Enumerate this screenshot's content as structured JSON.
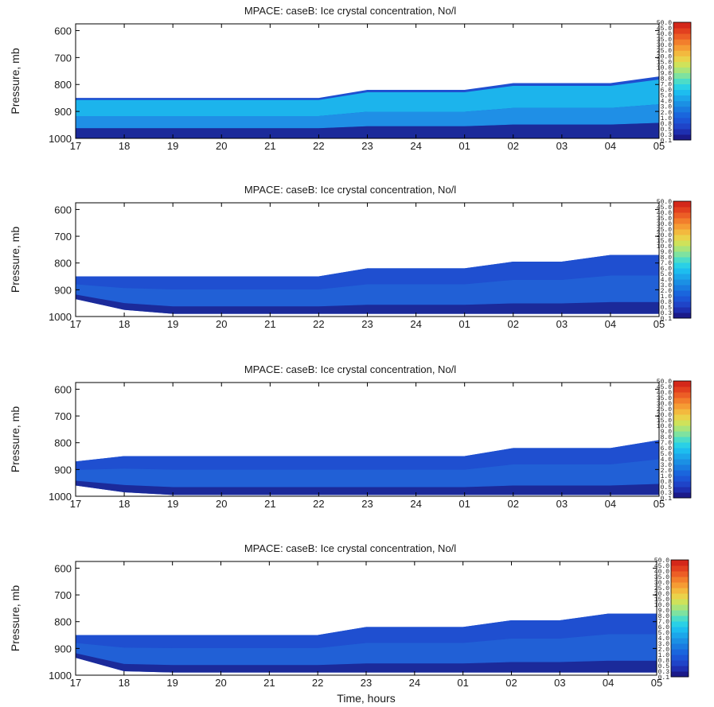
{
  "chart_data": [
    {
      "type": "heatmap",
      "title": "MPACE: caseB: Ice crystal concentration, No/l",
      "xlabel": "",
      "ylabel": "Pressure, mb",
      "x_ticks": [
        "17",
        "18",
        "19",
        "20",
        "21",
        "22",
        "23",
        "24",
        "01",
        "02",
        "03",
        "04",
        "05"
      ],
      "y_ticks": [
        600,
        700,
        800,
        900,
        1000
      ],
      "ylim": [
        1000,
        575
      ],
      "colorbar_levels": [
        "0.1",
        "0.3",
        "0.5",
        "0.8",
        "1.0",
        "2.0",
        "3.0",
        "4.0",
        "5.0",
        "6.0",
        "7.0",
        "8.0",
        "9.0",
        "10.0",
        "15.0",
        "20.0",
        "25.0",
        "30.0",
        "35.0",
        "40.0",
        "45.0",
        "50.0"
      ],
      "cloud_top_mb": [
        850,
        850,
        850,
        850,
        850,
        850,
        820,
        820,
        820,
        795,
        795,
        795,
        770
      ],
      "cloud_base_mb": [
        1000,
        1000,
        1000,
        1000,
        1000,
        1000,
        1000,
        1000,
        1000,
        1000,
        1000,
        1000,
        1000
      ]
    },
    {
      "type": "heatmap",
      "title": "MPACE: caseB: Ice crystal concentration, No/l",
      "xlabel": "",
      "ylabel": "Pressure, mb",
      "x_ticks": [
        "17",
        "18",
        "19",
        "20",
        "21",
        "22",
        "23",
        "24",
        "01",
        "02",
        "03",
        "04",
        "05"
      ],
      "y_ticks": [
        600,
        700,
        800,
        900,
        1000
      ],
      "ylim": [
        1000,
        575
      ],
      "colorbar_levels": [
        "0.1",
        "0.3",
        "0.5",
        "0.8",
        "1.0",
        "2.0",
        "3.0",
        "4.0",
        "5.0",
        "6.0",
        "7.0",
        "8.0",
        "9.0",
        "10.0",
        "15.0",
        "20.0",
        "25.0",
        "30.0",
        "35.0",
        "40.0",
        "45.0",
        "50.0"
      ],
      "cloud_top_mb": [
        850,
        850,
        850,
        850,
        850,
        850,
        820,
        820,
        820,
        795,
        795,
        770,
        770
      ],
      "cloud_base_mb": [
        935,
        975,
        990,
        990,
        990,
        990,
        990,
        990,
        990,
        990,
        990,
        990,
        990
      ]
    },
    {
      "type": "heatmap",
      "title": "MPACE: caseB: Ice crystal concentration, No/l",
      "xlabel": "",
      "ylabel": "Pressure, mb",
      "x_ticks": [
        "17",
        "18",
        "19",
        "20",
        "21",
        "22",
        "23",
        "24",
        "01",
        "02",
        "03",
        "04",
        "05"
      ],
      "y_ticks": [
        600,
        700,
        800,
        900,
        1000
      ],
      "ylim": [
        1000,
        575
      ],
      "colorbar_levels": [
        "0.1",
        "0.3",
        "0.5",
        "0.8",
        "1.0",
        "2.0",
        "3.0",
        "4.0",
        "5.0",
        "6.0",
        "7.0",
        "8.0",
        "9.0",
        "10.0",
        "15.0",
        "20.0",
        "25.0",
        "30.0",
        "35.0",
        "40.0",
        "45.0",
        "50.0"
      ],
      "cloud_top_mb": [
        870,
        850,
        850,
        850,
        850,
        850,
        850,
        850,
        850,
        820,
        820,
        820,
        790
      ],
      "cloud_base_mb": [
        960,
        985,
        995,
        995,
        995,
        995,
        995,
        995,
        995,
        995,
        995,
        995,
        995
      ]
    },
    {
      "type": "heatmap",
      "title": "MPACE: caseB: Ice crystal concentration, No/l",
      "xlabel": "Time, hours",
      "ylabel": "Pressure, mb",
      "x_ticks": [
        "17",
        "18",
        "19",
        "20",
        "21",
        "22",
        "23",
        "24",
        "01",
        "02",
        "03",
        "04",
        "05"
      ],
      "y_ticks": [
        600,
        700,
        800,
        900,
        1000
      ],
      "ylim": [
        1000,
        575
      ],
      "colorbar_levels": [
        "0.1",
        "0.3",
        "0.5",
        "0.8",
        "1.0",
        "2.0",
        "3.0",
        "4.0",
        "5.0",
        "6.0",
        "7.0",
        "8.0",
        "9.0",
        "10.0",
        "15.0",
        "20.0",
        "25.0",
        "30.0",
        "35.0",
        "40.0",
        "45.0",
        "50.0"
      ],
      "cloud_top_mb": [
        850,
        850,
        850,
        850,
        850,
        850,
        820,
        820,
        820,
        795,
        795,
        770,
        770
      ],
      "cloud_base_mb": [
        935,
        985,
        990,
        990,
        990,
        990,
        990,
        990,
        990,
        990,
        990,
        990,
        990
      ]
    }
  ],
  "colors": {
    "cmap": [
      "#1b1a8a",
      "#1e2fb0",
      "#1f44c8",
      "#1c55d6",
      "#1a66dd",
      "#1a7be0",
      "#1b90e4",
      "#1ca6ea",
      "#1dbdef",
      "#2ad0e6",
      "#4cdcc8",
      "#7ee2a0",
      "#a9e47a",
      "#cfe25a",
      "#ead24a",
      "#f3b93e",
      "#f59c34",
      "#f27e2c",
      "#ec5e26",
      "#e2401f",
      "#d4281a"
    ],
    "dark": "#1b2a9a",
    "mid": "#1f4fd0",
    "bright": "#1f8fe6",
    "cyan": "#1cb4ec"
  }
}
